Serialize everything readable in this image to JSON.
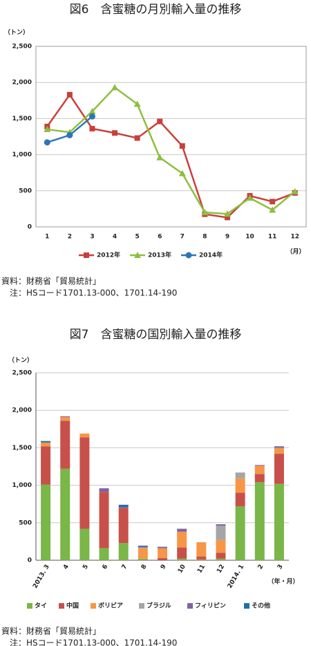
{
  "chart_data": [
    {
      "type": "line",
      "title": "図6　含蜜糖の月別輸入量の推移",
      "y_label": "（トン）",
      "x_label": "（月）",
      "categories": [
        "1",
        "2",
        "3",
        "4",
        "5",
        "6",
        "7",
        "8",
        "9",
        "10",
        "11",
        "12"
      ],
      "ylim": [
        0,
        2500
      ],
      "yticks": [
        0,
        500,
        {
          "value": 1000,
          "label": "1,000"
        },
        {
          "value": 1500,
          "label": "1,500"
        },
        {
          "value": 2000,
          "label": "2,000"
        },
        {
          "value": 2500,
          "label": "2,500"
        }
      ],
      "grid": true,
      "series": [
        {
          "name": "2012年",
          "color": "#c9403a",
          "marker": "square",
          "values": [
            1390,
            1830,
            1360,
            1300,
            1230,
            1460,
            1120,
            175,
            130,
            430,
            350,
            470
          ]
        },
        {
          "name": "2013年",
          "color": "#8dbf3f",
          "marker": "triangle",
          "values": [
            1350,
            1310,
            1600,
            1930,
            1700,
            960,
            740,
            200,
            180,
            400,
            235,
            490
          ]
        },
        {
          "name": "2014年",
          "color": "#2e75b6",
          "marker": "circle",
          "values": [
            1170,
            1270,
            1530,
            null,
            null,
            null,
            null,
            null,
            null,
            null,
            null,
            null
          ]
        }
      ],
      "source": "資料：財務省「貿易統計」",
      "note": "注：HSコード1701.13-000、1701.14-190"
    },
    {
      "type": "stacked_bar",
      "title": "図7　含蜜糖の国別輸入量の推移",
      "y_label": "（トン）",
      "x_label": "（年・月）",
      "categories": [
        "2013. 3",
        "4",
        "5",
        "6",
        "7",
        "8",
        "9",
        "10",
        "11",
        "12",
        "2014. 1",
        "2",
        "3"
      ],
      "ylim": [
        0,
        2500
      ],
      "yticks": [
        0,
        500,
        {
          "value": 1000,
          "label": "1,000"
        },
        {
          "value": 1500,
          "label": "1,500"
        },
        {
          "value": 2000,
          "label": "2,000"
        },
        {
          "value": 2500,
          "label": "2,500"
        }
      ],
      "grid": true,
      "series": [
        {
          "name": "タイ",
          "color": "#7ab648",
          "values": [
            1010,
            1220,
            420,
            160,
            230,
            20,
            0,
            20,
            10,
            20,
            720,
            1040,
            1020
          ]
        },
        {
          "name": "中国",
          "color": "#c8504a",
          "values": [
            510,
            640,
            1220,
            750,
            470,
            0,
            30,
            150,
            40,
            80,
            180,
            110,
            400
          ]
        },
        {
          "name": "ボリビア",
          "color": "#f79646",
          "values": [
            50,
            50,
            50,
            0,
            0,
            140,
            130,
            210,
            190,
            170,
            190,
            110,
            70
          ]
        },
        {
          "name": "ブラジル",
          "color": "#a5a5a5",
          "values": [
            0,
            0,
            0,
            0,
            0,
            10,
            0,
            0,
            0,
            190,
            80,
            0,
            10
          ]
        },
        {
          "name": "フィリピン",
          "color": "#8064a2",
          "values": [
            0,
            10,
            0,
            50,
            10,
            15,
            20,
            40,
            0,
            20,
            0,
            10,
            20
          ]
        },
        {
          "name": "その他",
          "color": "#1f6fa8",
          "values": [
            20,
            0,
            0,
            0,
            30,
            10,
            0,
            0,
            0,
            0,
            0,
            0,
            0
          ]
        }
      ],
      "source": "資料：財務省「貿易統計」",
      "note": "注：HSコード1701.13-000、1701.14-190"
    }
  ]
}
